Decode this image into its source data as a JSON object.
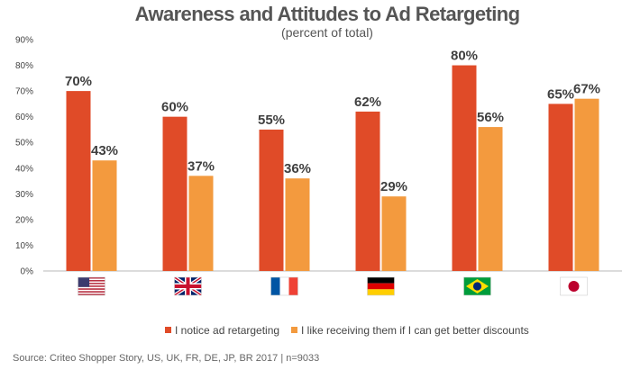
{
  "chart_data": {
    "type": "bar",
    "title": "Awareness and Attitudes to Ad Retargeting",
    "subtitle": "(percent of total)",
    "categories": [
      "US",
      "UK",
      "FR",
      "DE",
      "BR",
      "JP"
    ],
    "category_icons": [
      "us-flag-icon",
      "uk-flag-icon",
      "france-flag-icon",
      "germany-flag-icon",
      "brazil-flag-icon",
      "japan-flag-icon"
    ],
    "series": [
      {
        "name": "I notice ad retargeting",
        "color": "#E04B28",
        "values": [
          70,
          60,
          55,
          62,
          80,
          65
        ],
        "labels": [
          "70%",
          "60%",
          "55%",
          "62%",
          "80%",
          "65%"
        ]
      },
      {
        "name": "I like receiving them if I can get better discounts",
        "color": "#F39A3E",
        "values": [
          43,
          37,
          36,
          29,
          56,
          67
        ],
        "labels": [
          "43%",
          "37%",
          "36%",
          "29%",
          "56%",
          "67%"
        ]
      }
    ],
    "ylim": [
      0,
      90
    ],
    "yticks": [
      "0%",
      "10%",
      "20%",
      "30%",
      "40%",
      "50%",
      "60%",
      "70%",
      "80%",
      "90%"
    ],
    "grid": false,
    "legend_position": "bottom",
    "source": "Source: Criteo Shopper Story, US, UK, FR, DE, JP, BR 2017 | n=9033"
  }
}
